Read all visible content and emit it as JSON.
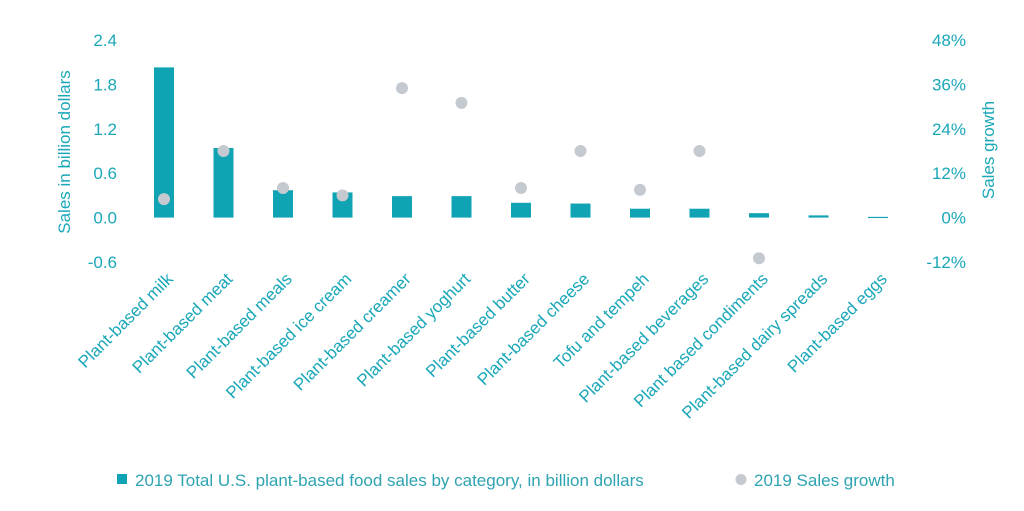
{
  "chart_data": {
    "type": "bar",
    "categories": [
      "Plant-based milk",
      "Plant-based meat",
      "Plant-based meals",
      "Plant-based ice cream",
      "Plant-based creamer",
      "Plant-based yoghurt",
      "Plant-based butter",
      "Plant-based cheese",
      "Tofu and tempeh",
      "Plant-based beverages",
      "Plant based condiments",
      "Plant-based dairy spreads",
      "Plant-based eggs"
    ],
    "series": [
      {
        "name": "2019 Total U.S. plant-based food sales by category, in billion dollars",
        "type": "bar",
        "axis": "left",
        "values": [
          2.03,
          0.94,
          0.37,
          0.34,
          0.29,
          0.29,
          0.2,
          0.19,
          0.12,
          0.12,
          0.06,
          0.03,
          0.01
        ]
      },
      {
        "name": "2019 Sales growth",
        "type": "scatter",
        "axis": "right",
        "values": [
          5,
          18,
          8,
          6,
          35,
          31,
          8,
          18,
          7.5,
          18,
          -11,
          null,
          null
        ]
      }
    ],
    "yleft": {
      "label": "Sales in billion dollars",
      "ticks": [
        "2.4",
        "1.8",
        "1.2",
        "0.6",
        "0.0",
        "-0.6"
      ],
      "range": [
        -0.6,
        2.4
      ]
    },
    "yright": {
      "label": "Sales growth",
      "ticks": [
        "48%",
        "36%",
        "24%",
        "12%",
        "0%",
        "-12%"
      ],
      "range": [
        -12,
        48
      ]
    },
    "grid": false,
    "legend_position": "bottom",
    "colors": {
      "bar": "#0fa3b4",
      "dot": "#c5cad0",
      "text": "#1aa7b8"
    }
  }
}
